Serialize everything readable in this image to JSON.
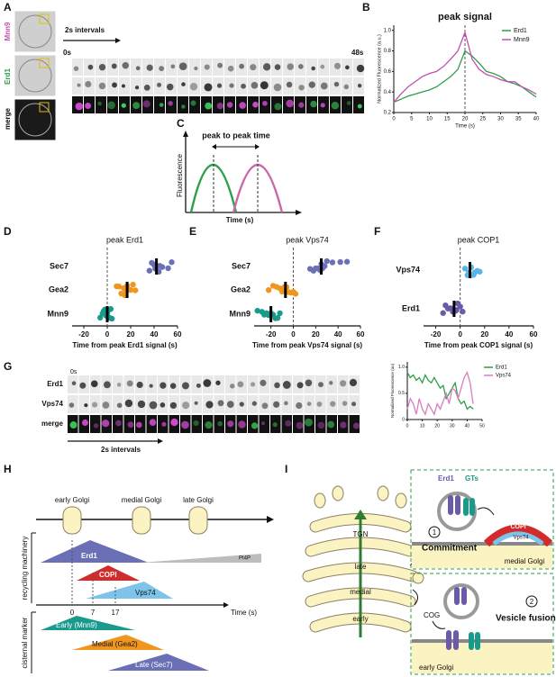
{
  "panel_labels": [
    "A",
    "B",
    "C",
    "D",
    "E",
    "F",
    "G",
    "H",
    "I"
  ],
  "panel_a": {
    "rows": [
      "Mnn9",
      "Erd1",
      "merge"
    ],
    "interval": "2s intervals",
    "start": "0s",
    "end": "48s"
  },
  "panel_c": {
    "title": "peak to peak time",
    "y_label": "Fluorescence",
    "x_label": "Time (s)"
  },
  "panel_g": {
    "rows": [
      "Erd1",
      "Vps74",
      "merge"
    ],
    "start": "0s",
    "interval": "2s intervals"
  },
  "panel_h": {
    "stages": [
      "early Golgi",
      "medial Golgi",
      "late Golgi"
    ],
    "sections": [
      "recycling machinery",
      "cisternal marker"
    ],
    "machinery": [
      "Erd1",
      "PI4P",
      "COPI",
      "Vps74"
    ],
    "times": [
      0,
      7,
      17
    ],
    "time_label": "Time (s)",
    "markers": [
      "Early (Mnn9)",
      "Medial (Gea2)",
      "Late (Sec7)"
    ]
  },
  "panel_i": {
    "cisternae": [
      "TGN",
      "late",
      "medial",
      "early"
    ],
    "cargo": [
      "Erd1",
      "GTs"
    ],
    "steps": [
      "1",
      "2"
    ],
    "step_names": [
      "Commitment",
      "Vesicle fusion"
    ],
    "coat": [
      "COPI",
      "Vps74"
    ],
    "tether": "COG",
    "compartments": [
      "medial Golgi",
      "early Golgi"
    ]
  },
  "chart_data": [
    {
      "type": "line",
      "title": "peak signal",
      "x_label": "Time (s)",
      "y_label": "Normalized Fluorescence (a.u.)",
      "x": [
        0,
        2,
        4,
        6,
        8,
        10,
        12,
        14,
        16,
        18,
        20,
        22,
        24,
        26,
        28,
        30,
        32,
        34,
        36,
        38,
        40
      ],
      "series": [
        {
          "name": "Erd1",
          "color": "#2e9e4a",
          "values": [
            0.3,
            0.33,
            0.36,
            0.38,
            0.4,
            0.42,
            0.45,
            0.5,
            0.55,
            0.62,
            0.8,
            0.75,
            0.68,
            0.6,
            0.58,
            0.55,
            0.5,
            0.48,
            0.45,
            0.4,
            0.35
          ]
        },
        {
          "name": "Mnn9",
          "color": "#c44cb4",
          "values": [
            0.3,
            0.38,
            0.45,
            0.5,
            0.55,
            0.58,
            0.6,
            0.65,
            0.72,
            0.8,
            0.98,
            0.72,
            0.62,
            0.57,
            0.55,
            0.52,
            0.5,
            0.5,
            0.45,
            0.42,
            0.38
          ]
        }
      ],
      "xlim": [
        0,
        40
      ],
      "xticks": [
        0,
        5,
        10,
        15,
        20,
        25,
        30,
        35,
        40
      ],
      "ylim": [
        0.2,
        1.05
      ],
      "yticks": [
        0.2,
        0.4,
        0.6,
        0.8,
        {
          "value": 1,
          "label": "1.0"
        }
      ],
      "vline": 20,
      "legend": "upper right"
    },
    {
      "type": "strip",
      "title": "peak Erd1",
      "x_label": "Time from peak Erd1 signal (s)",
      "categories": [
        "Sec7",
        "Gea2",
        "Mnn9"
      ],
      "colors": [
        "#6b6fb5",
        "#f0961e",
        "#1a9a8c"
      ],
      "values": [
        [
          36,
          38,
          40,
          41,
          42,
          43,
          44,
          45,
          47,
          52,
          55
        ],
        [
          8,
          10,
          12,
          14,
          15,
          16,
          17,
          18,
          20,
          22,
          24
        ],
        [
          -6,
          -4,
          -3,
          -2,
          -1,
          0,
          1,
          2,
          3,
          4
        ]
      ],
      "means": [
        42,
        17,
        0
      ],
      "xlim": [
        -30,
        60
      ],
      "xticks": [
        -20,
        0,
        20,
        40,
        60
      ],
      "vline": 0
    },
    {
      "type": "strip",
      "title": "peak Vps74",
      "x_label": "Time from peak Vps74 signal (s)",
      "categories": [
        "Sec7",
        "Gea2",
        "Mnn9"
      ],
      "colors": [
        "#6b6fb5",
        "#f0961e",
        "#1a9a8c"
      ],
      "values": [
        [
          15,
          18,
          20,
          22,
          24,
          25,
          26,
          28,
          30,
          35,
          42,
          48
        ],
        [
          -22,
          -18,
          -15,
          -12,
          -10,
          -8,
          -6,
          -4,
          -2,
          0,
          2
        ],
        [
          -32,
          -28,
          -26,
          -24,
          -22,
          -20,
          -18,
          -16,
          -14,
          -12
        ]
      ],
      "means": [
        25,
        -7,
        -20
      ],
      "xlim": [
        -35,
        60
      ],
      "xticks": [
        -20,
        0,
        20,
        40,
        60
      ],
      "vline": 0
    },
    {
      "type": "strip",
      "title": "peak COP1",
      "x_label": "Time from peak COP1 signal (s)",
      "categories": [
        "Vps74",
        "Erd1"
      ],
      "colors": [
        "#5ab4e6",
        "#6b5aa8"
      ],
      "values": [
        [
          4,
          6,
          7,
          8,
          9,
          10,
          11,
          12,
          14,
          16
        ],
        [
          -14,
          -12,
          -10,
          -8,
          -6,
          -5,
          -4,
          -3,
          -2,
          0,
          2
        ]
      ],
      "means": [
        8,
        -5
      ],
      "xlim": [
        -30,
        60
      ],
      "xticks": [
        -20,
        0,
        20,
        40,
        60
      ],
      "vline": 0
    },
    {
      "type": "line",
      "y_label": "Normalized Fluorescence (au)",
      "x": [
        0,
        2,
        4,
        6,
        8,
        10,
        12,
        14,
        16,
        18,
        20,
        22,
        24,
        26,
        28,
        30,
        32,
        34,
        36,
        38,
        40,
        42,
        44
      ],
      "series": [
        {
          "name": "Erd1",
          "color": "#2e9e4a",
          "values": [
            0.9,
            0.8,
            0.85,
            0.75,
            0.8,
            0.7,
            0.85,
            0.75,
            0.7,
            0.8,
            0.7,
            0.6,
            0.65,
            0.4,
            0.5,
            0.6,
            0.7,
            0.4,
            0.3,
            0.35,
            0.2,
            0.25,
            0.2
          ]
        },
        {
          "name": "Vps74",
          "color": "#d67fc0",
          "values": [
            0.2,
            0.4,
            0.3,
            0.1,
            0.4,
            0.2,
            0.1,
            0.3,
            0.2,
            0.1,
            0.3,
            0.2,
            0.35,
            0.5,
            0.3,
            0.6,
            0.55,
            0.4,
            0.6,
            0.8,
            0.9,
            0.7,
            0.3
          ]
        }
      ],
      "xlim": [
        0,
        50
      ],
      "xticks": [
        0,
        10,
        20,
        30,
        40,
        50
      ],
      "ylim": [
        0,
        1.1
      ],
      "yticks": [
        0,
        0.5,
        {
          "value": 1,
          "label": "1.0"
        }
      ],
      "legend": "upper right"
    }
  ]
}
